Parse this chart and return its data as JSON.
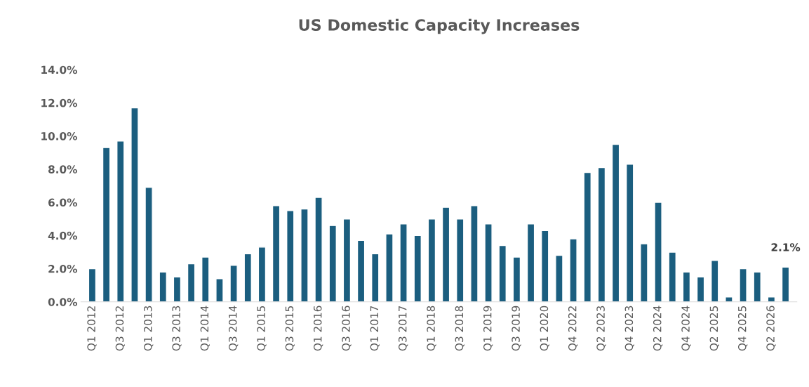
{
  "chart_data": {
    "type": "bar",
    "title": "US Domestic Capacity Increases",
    "categories": [
      "Q1 2012",
      null,
      "Q3 2012",
      null,
      "Q1 2013",
      null,
      "Q3 2013",
      null,
      "Q1 2014",
      null,
      "Q3 2014",
      null,
      "Q1 2015",
      null,
      "Q3 2015",
      null,
      "Q1 2016",
      null,
      "Q3 2016",
      null,
      "Q1 2017",
      null,
      "Q3 2017",
      null,
      "Q1 2018",
      null,
      "Q3 2018",
      null,
      "Q1 2019",
      null,
      "Q3 2019",
      null,
      "Q1 2020",
      null,
      "Q4 2022",
      null,
      "Q2 2023",
      null,
      "Q4 2023",
      null,
      "Q2 2024",
      null,
      "Q4 2024",
      null,
      "Q2 2025",
      null,
      "Q4 2025",
      null,
      "Q2 2026",
      null
    ],
    "values": [
      2.0,
      9.3,
      9.7,
      11.7,
      6.9,
      1.8,
      1.5,
      2.3,
      2.7,
      1.4,
      2.2,
      2.9,
      3.3,
      5.8,
      5.5,
      5.6,
      6.3,
      4.6,
      5.0,
      3.7,
      2.9,
      4.1,
      4.7,
      4.0,
      5.0,
      5.7,
      5.0,
      5.8,
      4.7,
      3.4,
      2.7,
      4.7,
      4.3,
      2.8,
      3.8,
      7.8,
      8.1,
      9.5,
      8.3,
      3.5,
      6.0,
      3.0,
      1.8,
      1.5,
      2.5,
      0.3,
      2.0,
      1.8,
      0.3,
      2.1
    ],
    "value_labels": [
      null,
      null,
      null,
      null,
      null,
      null,
      null,
      null,
      null,
      null,
      null,
      null,
      null,
      null,
      null,
      null,
      null,
      null,
      null,
      null,
      null,
      null,
      null,
      null,
      null,
      null,
      null,
      null,
      null,
      null,
      null,
      null,
      null,
      null,
      null,
      null,
      null,
      null,
      null,
      null,
      null,
      null,
      null,
      null,
      null,
      null,
      null,
      null,
      null,
      "2.1%"
    ],
    "color": "#1b5e7f",
    "ylim": [
      0,
      14
    ],
    "yticks": [
      {
        "value": 0,
        "label": "0.0%"
      },
      {
        "value": 2,
        "label": "2.0%"
      },
      {
        "value": 4,
        "label": "4.0%"
      },
      {
        "value": 6,
        "label": "6.0%"
      },
      {
        "value": 8,
        "label": "8.0%"
      },
      {
        "value": 10,
        "label": "10.0%"
      },
      {
        "value": 12,
        "label": "12.0%"
      },
      {
        "value": 14,
        "label": "14.0%"
      }
    ],
    "grid": false,
    "legend": false
  }
}
